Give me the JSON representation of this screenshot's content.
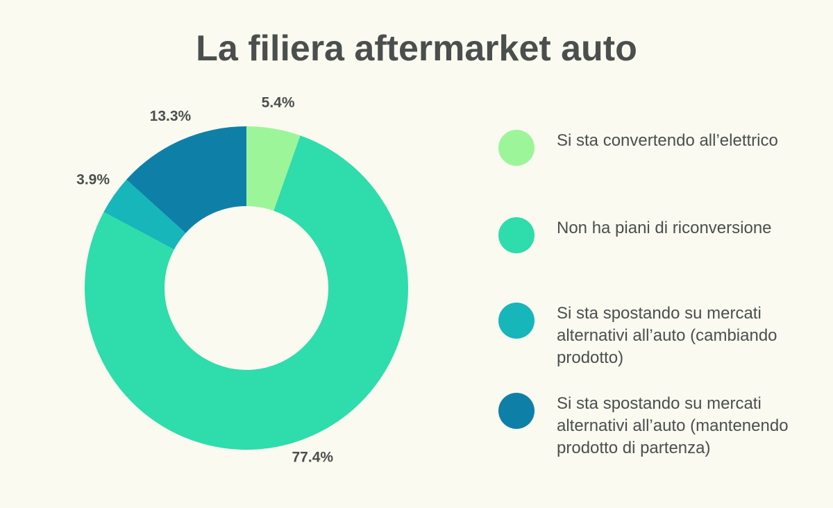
{
  "chart_data": {
    "type": "pie",
    "title": "La filiera aftermarket auto",
    "donut": true,
    "legend_position": "right",
    "series": [
      {
        "name": "Si sta convertendo all’elettrico",
        "value": 5.4,
        "label": "5.4%",
        "color": "#9df59a"
      },
      {
        "name": "Non ha piani di riconversione",
        "value": 77.4,
        "label": "77.4%",
        "color": "#2fdcab"
      },
      {
        "name": "Si sta spostando su mercati alternativi all’auto (cambiando prodotto)",
        "value": 3.9,
        "label": "3.9%",
        "color": "#16b6ba"
      },
      {
        "name": "Si sta spostando su mercati alternativi all’auto (mantenendo prodotto di partenza)",
        "value": 13.3,
        "label": "13.3%",
        "color": "#0e80a8"
      }
    ]
  }
}
